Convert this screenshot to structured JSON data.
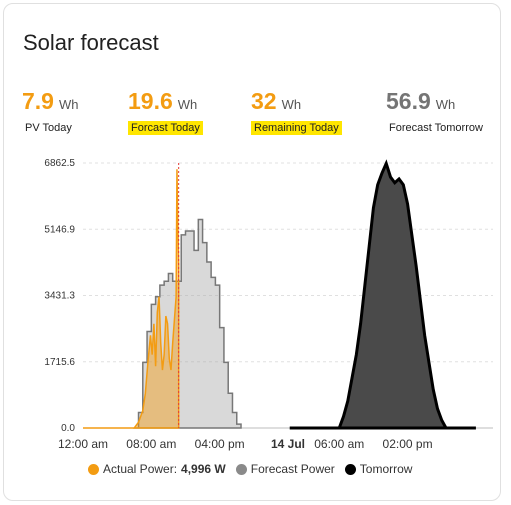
{
  "card": {
    "title": "Solar forecast"
  },
  "stats": [
    {
      "value": "7.9",
      "unit": "Wh",
      "label": "PV Today",
      "color": "#f39c12",
      "highlight": false
    },
    {
      "value": "19.6",
      "unit": "Wh",
      "label": "Forcast Today",
      "color": "#f39c12",
      "highlight": true
    },
    {
      "value": "32",
      "unit": "Wh",
      "label": "Remaining Today",
      "color": "#f39c12",
      "highlight": true
    },
    {
      "value": "56.9",
      "unit": "Wh",
      "label": "Forecast Tomorrow",
      "color": "#757575",
      "highlight": false
    }
  ],
  "chart_data": {
    "type": "area",
    "y_ticks": [
      "6862.5",
      "5146.9",
      "3431.3",
      "1715.6",
      "0.0"
    ],
    "ylim": [
      0,
      6862.5
    ],
    "x_ticks": [
      {
        "label": "12:00 am",
        "bold": false,
        "hour": 0
      },
      {
        "label": "08:00 am",
        "bold": false,
        "hour": 8
      },
      {
        "label": "04:00 pm",
        "bold": false,
        "hour": 16
      },
      {
        "label": "14 Jul",
        "bold": true,
        "hour": 24
      },
      {
        "label": "06:00 am",
        "bold": false,
        "hour": 30
      },
      {
        "label": "02:00 pm",
        "bold": false,
        "hour": 38
      }
    ],
    "x_range_hours": [
      0,
      48
    ],
    "now_hour": 11.2,
    "series": [
      {
        "name": "Actual Power",
        "color": "#f39c12",
        "points": [
          [
            6,
            0
          ],
          [
            6.5,
            150
          ],
          [
            7,
            450
          ],
          [
            7.3,
            900
          ],
          [
            7.6,
            1700
          ],
          [
            7.9,
            2400
          ],
          [
            8.1,
            1900
          ],
          [
            8.3,
            2700
          ],
          [
            8.5,
            1600
          ],
          [
            8.7,
            3000
          ],
          [
            8.9,
            3400
          ],
          [
            9.1,
            2200
          ],
          [
            9.3,
            1500
          ],
          [
            9.5,
            1900
          ],
          [
            9.7,
            2900
          ],
          [
            9.9,
            2700
          ],
          [
            10.1,
            1800
          ],
          [
            10.3,
            1500
          ],
          [
            10.5,
            2200
          ],
          [
            10.7,
            2800
          ],
          [
            10.9,
            3400
          ],
          [
            11,
            6700
          ],
          [
            11.1,
            5300
          ],
          [
            11.2,
            4200
          ]
        ]
      },
      {
        "name": "Forecast Power",
        "color": "#8a8a8a",
        "points": [
          [
            6,
            0
          ],
          [
            6.5,
            400
          ],
          [
            7,
            1700
          ],
          [
            7.5,
            2500
          ],
          [
            8,
            3200
          ],
          [
            8.5,
            3400
          ],
          [
            9,
            3700
          ],
          [
            9.5,
            3800
          ],
          [
            10,
            4000
          ],
          [
            10.5,
            3800
          ],
          [
            11,
            3800
          ],
          [
            11.5,
            5000
          ],
          [
            12,
            5100
          ],
          [
            12.5,
            5100
          ],
          [
            13,
            4600
          ],
          [
            13.5,
            5400
          ],
          [
            14,
            4800
          ],
          [
            14.5,
            4300
          ],
          [
            15,
            3900
          ],
          [
            15.5,
            3700
          ],
          [
            16,
            2600
          ],
          [
            16.5,
            1700
          ],
          [
            17,
            900
          ],
          [
            17.5,
            400
          ],
          [
            18,
            100
          ],
          [
            18.5,
            0
          ]
        ]
      },
      {
        "name": "Tomorrow",
        "color": "#000000",
        "points": [
          [
            30,
            0
          ],
          [
            30.5,
            300
          ],
          [
            31,
            700
          ],
          [
            31.5,
            1300
          ],
          [
            32,
            1900
          ],
          [
            32.5,
            2700
          ],
          [
            33,
            3700
          ],
          [
            33.5,
            4700
          ],
          [
            34,
            5700
          ],
          [
            34.5,
            6300
          ],
          [
            35,
            6600
          ],
          [
            35.5,
            6850
          ],
          [
            36,
            6500
          ],
          [
            36.5,
            6350
          ],
          [
            37,
            6450
          ],
          [
            37.5,
            6300
          ],
          [
            38,
            5800
          ],
          [
            38.5,
            5000
          ],
          [
            39,
            4200
          ],
          [
            39.5,
            3300
          ],
          [
            40,
            2400
          ],
          [
            40.5,
            1700
          ],
          [
            41,
            1000
          ],
          [
            41.5,
            500
          ],
          [
            42,
            200
          ],
          [
            42.5,
            0
          ]
        ]
      }
    ],
    "legend": {
      "actual_label": "Actual Power:",
      "actual_value": "4,996 W",
      "forecast_label": "Forecast Power",
      "tomorrow_label": "Tomorrow"
    }
  }
}
